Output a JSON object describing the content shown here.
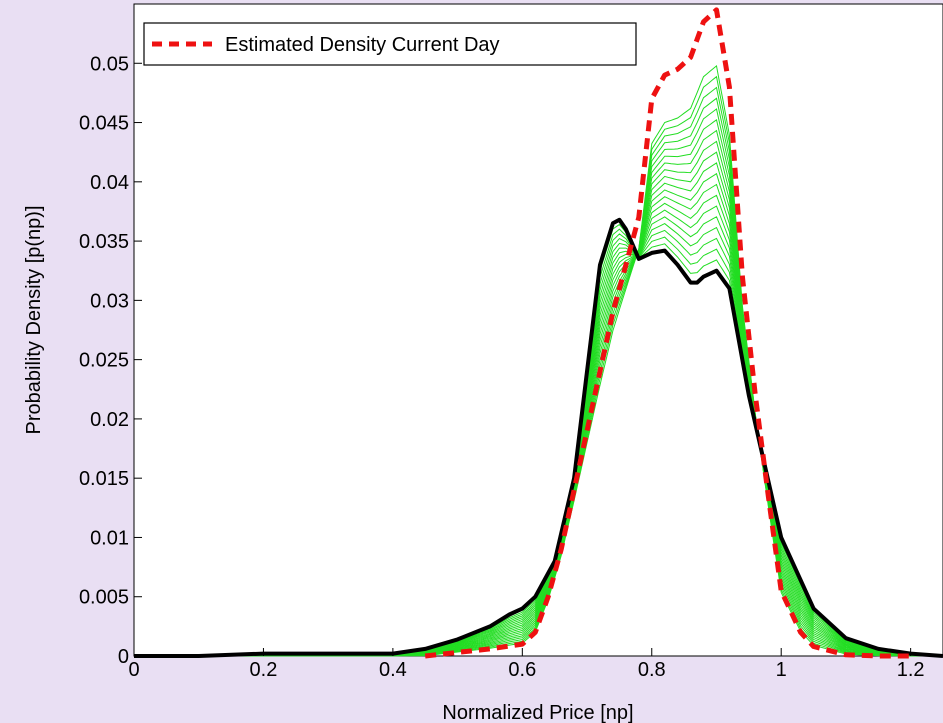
{
  "chart_data": {
    "type": "line",
    "xlabel": "Normalized Price [np]",
    "ylabel": "Probability Density [p(np)]",
    "xlim": [
      0,
      1.25
    ],
    "ylim": [
      0,
      0.055
    ],
    "x_ticks": [
      "0",
      "0.2",
      "0.4",
      "0.6",
      "0.8",
      "1",
      "1.2"
    ],
    "y_ticks": [
      "0",
      "0.005",
      "0.01",
      "0.015",
      "0.02",
      "0.025",
      "0.03",
      "0.035",
      "0.04",
      "0.045",
      "0.05"
    ],
    "grid": false,
    "legend": {
      "placement": "top-left",
      "entries": [
        "Estimated Density Current Day"
      ]
    },
    "series": [
      {
        "name": "",
        "role": "start-density",
        "color": "#000000",
        "style": "solid-thick",
        "x": [
          0,
          0.1,
          0.2,
          0.3,
          0.4,
          0.45,
          0.5,
          0.55,
          0.58,
          0.6,
          0.62,
          0.65,
          0.68,
          0.7,
          0.72,
          0.74,
          0.75,
          0.76,
          0.78,
          0.8,
          0.82,
          0.84,
          0.86,
          0.87,
          0.88,
          0.9,
          0.92,
          0.95,
          1.0,
          1.05,
          1.1,
          1.15,
          1.2,
          1.25
        ],
        "y": [
          0,
          0,
          0.0002,
          0.0002,
          0.0002,
          0.0006,
          0.0014,
          0.0025,
          0.0035,
          0.004,
          0.005,
          0.008,
          0.015,
          0.024,
          0.033,
          0.0365,
          0.0368,
          0.036,
          0.0335,
          0.034,
          0.0342,
          0.033,
          0.0315,
          0.0315,
          0.032,
          0.0325,
          0.031,
          0.022,
          0.01,
          0.004,
          0.0015,
          0.0006,
          0.0002,
          0
        ]
      },
      {
        "name": "Estimated Density Current Day",
        "role": "current-day",
        "color": "#ee1111",
        "style": "dashed-thick",
        "x": [
          0.45,
          0.5,
          0.55,
          0.6,
          0.62,
          0.64,
          0.66,
          0.68,
          0.7,
          0.72,
          0.74,
          0.76,
          0.78,
          0.8,
          0.82,
          0.84,
          0.86,
          0.88,
          0.9,
          0.92,
          0.94,
          0.96,
          0.98,
          1.0,
          1.03,
          1.05,
          1.1,
          1.15,
          1.2
        ],
        "y": [
          0,
          0.0003,
          0.0006,
          0.001,
          0.002,
          0.005,
          0.009,
          0.014,
          0.019,
          0.024,
          0.029,
          0.033,
          0.037,
          0.047,
          0.049,
          0.0495,
          0.0505,
          0.0535,
          0.0545,
          0.048,
          0.032,
          0.022,
          0.0135,
          0.0055,
          0.002,
          0.0008,
          0.0001,
          0,
          0
        ]
      }
    ],
    "transition_lines": {
      "count": 20,
      "color": "#22dd22",
      "description": "green curves interpolating from start to current day"
    }
  }
}
